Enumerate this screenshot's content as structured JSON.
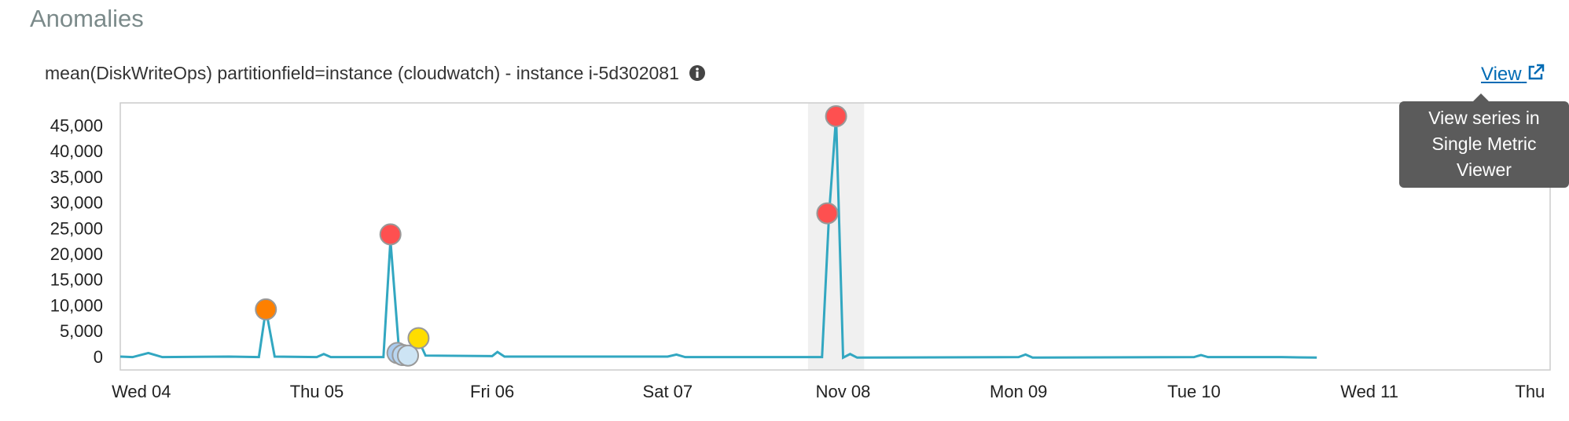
{
  "header": {
    "title": "Anomalies"
  },
  "chart_data": {
    "type": "line",
    "title": "mean(DiskWriteOps) partitionfield=instance (cloudwatch) - instance i-5d302081",
    "link": "View",
    "tooltip": "View series in Single Metric Viewer",
    "xlim": [
      -0.12,
      8.03
    ],
    "xticks": [
      {
        "value": 0,
        "label": "Wed 04"
      },
      {
        "value": 1,
        "label": "Thu 05"
      },
      {
        "value": 2,
        "label": "Fri 06"
      },
      {
        "value": 3,
        "label": "Sat 07"
      },
      {
        "value": 4,
        "label": "Nov 08"
      },
      {
        "value": 5,
        "label": "Mon 09"
      },
      {
        "value": 6,
        "label": "Tue 10"
      },
      {
        "value": 7,
        "label": "Wed 11"
      },
      {
        "value": 8,
        "label": "Thu"
      }
    ],
    "ylim": [
      -2300,
      49700
    ],
    "yticks": [
      0,
      {
        "value": 5000,
        "label": "5,000"
      },
      {
        "value": 10000,
        "label": "10,000"
      },
      {
        "value": 15000,
        "label": "15,000"
      },
      {
        "value": 20000,
        "label": "20,000"
      },
      {
        "value": 25000,
        "label": "25,000"
      },
      {
        "value": 30000,
        "label": "30,000"
      },
      {
        "value": 35000,
        "label": "35,000"
      },
      {
        "value": 40000,
        "label": "40,000"
      },
      {
        "value": 45000,
        "label": "45,000"
      }
    ],
    "highlight": [
      3.8,
      4.12
    ],
    "series": [
      {
        "color": "#32a7c1",
        "x": [
          -0.12,
          -0.05,
          0.04,
          0.12,
          0.5,
          0.67,
          0.71,
          0.76,
          1.0,
          1.04,
          1.08,
          1.38,
          1.42,
          1.47,
          1.52,
          1.58,
          1.62,
          2.0,
          2.03,
          2.07,
          3.0,
          3.05,
          3.1,
          3.88,
          3.92,
          3.96,
          4.0,
          4.04,
          4.08,
          5.0,
          5.04,
          5.08,
          6.0,
          6.04,
          6.08,
          6.5,
          6.7
        ],
        "values": [
          300,
          200,
          1000,
          200,
          300,
          200,
          9500,
          300,
          200,
          800,
          200,
          200,
          23000,
          1000,
          300,
          3500,
          500,
          400,
          1200,
          300,
          300,
          700,
          200,
          200,
          28000,
          47000,
          100,
          800,
          100,
          200,
          700,
          100,
          200,
          600,
          200,
          200,
          100
        ]
      }
    ],
    "anomalies": {
      "x": [
        0.71,
        1.42,
        1.46,
        1.49,
        1.52,
        1.58,
        3.91,
        3.96
      ],
      "values": [
        9500,
        24100,
        1000,
        600,
        500,
        3900,
        28200,
        47100
      ],
      "colors": [
        "#fe8000",
        "#fe5050",
        "#a9cbee",
        "#b9d6f0",
        "#cde4f4",
        "#ffdd00",
        "#fe5050",
        "#fe5050"
      ]
    }
  }
}
